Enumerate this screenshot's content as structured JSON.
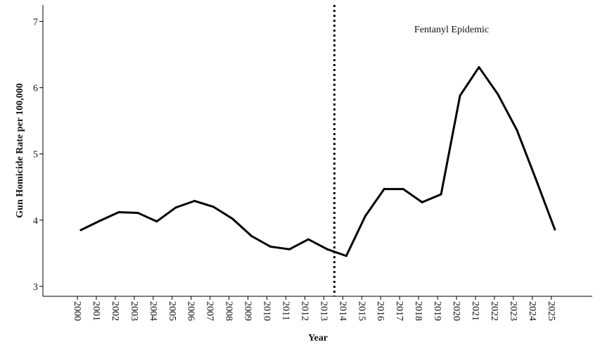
{
  "chart_data": {
    "type": "line",
    "title": "",
    "xlabel": "Year",
    "ylabel": "Gun Homicide Rate per 100,000",
    "ylim": [
      2.85,
      7.25
    ],
    "yticks": [
      3,
      4,
      5,
      6,
      7
    ],
    "grid": false,
    "categories": [
      "2000",
      "2001",
      "2002",
      "2003",
      "2004",
      "2005",
      "2006",
      "2007",
      "2008",
      "2009",
      "2010",
      "2011",
      "2012",
      "2013",
      "2014",
      "2015",
      "2016",
      "2017",
      "2018",
      "2019",
      "2020",
      "2021",
      "2022",
      "2023",
      "2024",
      "2025"
    ],
    "series": [
      {
        "values": [
          3.85,
          3.99,
          4.12,
          4.11,
          3.98,
          4.19,
          4.29,
          4.2,
          4.02,
          3.76,
          3.6,
          3.56,
          3.71,
          3.56,
          3.46,
          4.06,
          4.47,
          4.47,
          4.27,
          4.39,
          5.88,
          6.31,
          5.9,
          5.36,
          4.62,
          3.86
        ],
        "color": "#000000"
      }
    ],
    "annotations": [
      {
        "type": "vertical-line",
        "x": "2013",
        "style": "dotted"
      },
      {
        "type": "text",
        "text": "Fentanyl Epidemic"
      }
    ]
  }
}
